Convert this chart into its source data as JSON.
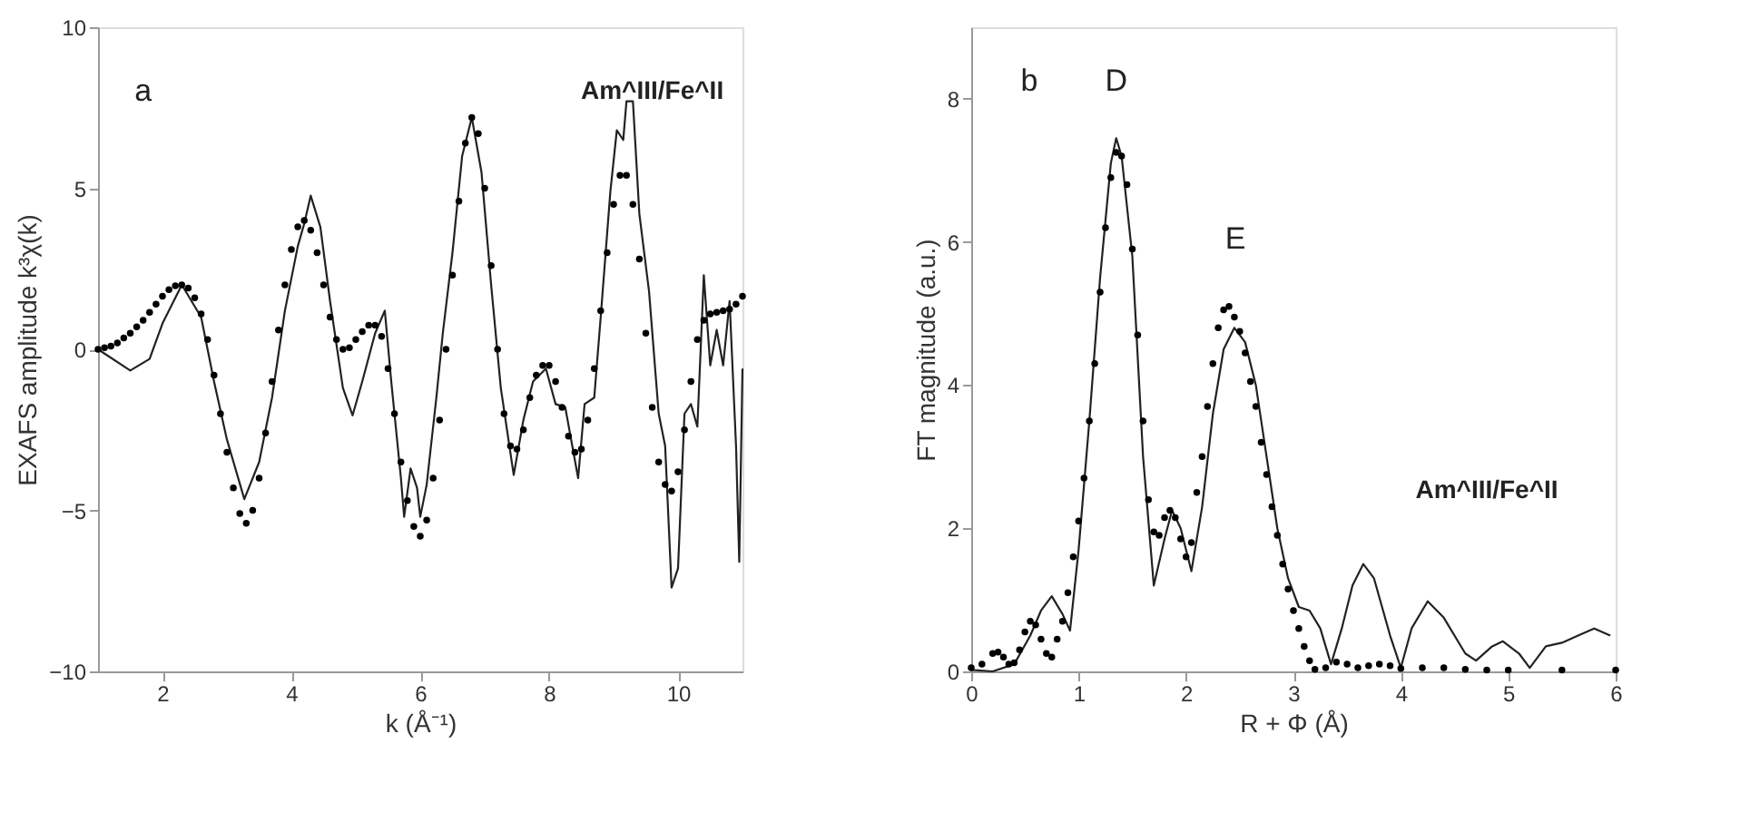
{
  "chart_data": [
    {
      "type": "line",
      "xlabel": "k (Å⁻¹)",
      "ylabel": "EXAFS amplitude k³χ(k)",
      "xlim": [
        1,
        11
      ],
      "ylim": [
        -10,
        10
      ],
      "xticks": [
        2,
        4,
        6,
        8,
        10
      ],
      "yticks": [
        -10,
        -5,
        0,
        5,
        10
      ],
      "grid": false,
      "annotations": [
        "a",
        "Am^III/Fe^II"
      ],
      "series": [
        {
          "type": "line",
          "color": "#222222",
          "line_style": "solid",
          "x": [
            1.0,
            1.5,
            1.8,
            2.0,
            2.3,
            2.6,
            2.8,
            3.0,
            3.27,
            3.5,
            3.7,
            3.9,
            4.1,
            4.2,
            4.3,
            4.45,
            4.6,
            4.8,
            4.95,
            5.1,
            5.3,
            5.45,
            5.55,
            5.7,
            5.75,
            5.85,
            5.95,
            6.0,
            6.1,
            6.25,
            6.35,
            6.5,
            6.65,
            6.8,
            6.95,
            7.1,
            7.25,
            7.45,
            7.6,
            7.75,
            7.95,
            8.1,
            8.25,
            8.45,
            8.55,
            8.7,
            8.8,
            8.95,
            9.05,
            9.15,
            9.2,
            9.3,
            9.4,
            9.55,
            9.7,
            9.8,
            9.9,
            10.0,
            10.1,
            10.2,
            10.3,
            10.4,
            10.5,
            10.6,
            10.7,
            10.8,
            10.9,
            10.95,
            11.0
          ],
          "values": [
            0,
            -0.66,
            -0.3,
            0.8,
            2.0,
            1.0,
            -1,
            -2.8,
            -4.65,
            -3.5,
            -1.5,
            1.2,
            3.2,
            3.9,
            4.77,
            3.8,
            1.5,
            -1.2,
            -2.05,
            -1.0,
            0.5,
            1.2,
            -1,
            -4,
            -5.2,
            -3.7,
            -4.3,
            -5.2,
            -4.2,
            -1.5,
            0.5,
            3.0,
            6.0,
            7.2,
            5.5,
            2.0,
            -1.2,
            -3.9,
            -2.2,
            -1.0,
            -0.6,
            -1.7,
            -1.8,
            -4.0,
            -1.7,
            -1.5,
            1.0,
            4.9,
            6.8,
            6.5,
            7.7,
            7.7,
            4.2,
            1.8,
            -2.0,
            -3.0,
            -7.4,
            -6.8,
            -2.0,
            -1.7,
            -2.4,
            2.3,
            -0.5,
            0.6,
            -0.5,
            1.5,
            -3,
            -6.6,
            -0.6
          ]
        },
        {
          "type": "scatter",
          "marker": "circle",
          "color": "#000000",
          "x": [
            1.0,
            1.1,
            1.2,
            1.3,
            1.4,
            1.5,
            1.6,
            1.7,
            1.8,
            1.9,
            2.0,
            2.1,
            2.2,
            2.3,
            2.4,
            2.5,
            2.6,
            2.7,
            2.8,
            2.9,
            3.0,
            3.1,
            3.2,
            3.3,
            3.4,
            3.5,
            3.6,
            3.7,
            3.8,
            3.9,
            4.0,
            4.1,
            4.2,
            4.3,
            4.4,
            4.5,
            4.6,
            4.7,
            4.8,
            4.9,
            5.0,
            5.1,
            5.2,
            5.3,
            5.4,
            5.5,
            5.6,
            5.7,
            5.8,
            5.9,
            6.0,
            6.1,
            6.2,
            6.3,
            6.4,
            6.5,
            6.6,
            6.7,
            6.8,
            6.9,
            7.0,
            7.1,
            7.2,
            7.3,
            7.4,
            7.5,
            7.6,
            7.7,
            7.8,
            7.9,
            8.0,
            8.1,
            8.2,
            8.3,
            8.4,
            8.5,
            8.6,
            8.7,
            8.8,
            8.9,
            9.0,
            9.1,
            9.2,
            9.3,
            9.4,
            9.5,
            9.6,
            9.7,
            9.8,
            9.9,
            10.0,
            10.1,
            10.2,
            10.3,
            10.4,
            10.5,
            10.6,
            10.7,
            10.8,
            10.9,
            11.0
          ],
          "values": [
            0,
            0.05,
            0.1,
            0.2,
            0.35,
            0.5,
            0.7,
            0.9,
            1.15,
            1.4,
            1.65,
            1.85,
            1.97,
            2.0,
            1.9,
            1.6,
            1.1,
            0.3,
            -0.8,
            -2.0,
            -3.2,
            -4.3,
            -5.1,
            -5.4,
            -5.0,
            -4.0,
            -2.6,
            -1.0,
            0.6,
            2.0,
            3.1,
            3.8,
            4.0,
            3.7,
            3.0,
            2.0,
            1.0,
            0.3,
            0.0,
            0.05,
            0.3,
            0.55,
            0.75,
            0.75,
            0.4,
            -0.6,
            -2.0,
            -3.5,
            -4.7,
            -5.5,
            -5.8,
            -5.3,
            -4.0,
            -2.2,
            0.0,
            2.3,
            4.6,
            6.4,
            7.2,
            6.7,
            5.0,
            2.6,
            0.0,
            -2.0,
            -3.0,
            -3.1,
            -2.5,
            -1.5,
            -0.8,
            -0.5,
            -0.5,
            -1.0,
            -1.8,
            -2.7,
            -3.2,
            -3.1,
            -2.2,
            -0.6,
            1.2,
            3.0,
            4.5,
            5.4,
            5.4,
            4.5,
            2.8,
            0.5,
            -1.8,
            -3.5,
            -4.2,
            -4.4,
            -3.8,
            -2.5,
            -1.0,
            0.3,
            0.9,
            1.1,
            1.15,
            1.2,
            1.25,
            1.4,
            1.65
          ]
        }
      ]
    },
    {
      "type": "line",
      "xlabel": "R + Φ (Å)",
      "ylabel": "FT magnitude (a.u.)",
      "xlim": [
        0,
        6
      ],
      "ylim": [
        0,
        9
      ],
      "xticks": [
        0,
        1,
        2,
        3,
        4,
        5,
        6
      ],
      "yticks": [
        0,
        2,
        4,
        6,
        8
      ],
      "grid": false,
      "annotations": [
        "b",
        "D",
        "E",
        "Am^III/Fe^II"
      ],
      "series": [
        {
          "type": "line",
          "color": "#222222",
          "line_style": "solid",
          "x": [
            0,
            0.2,
            0.4,
            0.55,
            0.65,
            0.75,
            0.85,
            0.92,
            1.0,
            1.1,
            1.2,
            1.3,
            1.35,
            1.4,
            1.5,
            1.6,
            1.7,
            1.8,
            1.87,
            1.95,
            2.05,
            2.15,
            2.25,
            2.35,
            2.45,
            2.55,
            2.65,
            2.75,
            2.85,
            2.95,
            3.05,
            3.15,
            3.25,
            3.35,
            3.45,
            3.55,
            3.65,
            3.75,
            3.9,
            4.0,
            4.1,
            4.25,
            4.4,
            4.6,
            4.7,
            4.85,
            4.95,
            5.1,
            5.2,
            5.35,
            5.5,
            5.65,
            5.8,
            5.95
          ],
          "values": [
            0.02,
            0.0,
            0.1,
            0.5,
            0.85,
            1.05,
            0.8,
            0.57,
            1.7,
            3.5,
            5.5,
            7.1,
            7.45,
            7.2,
            5.8,
            3.0,
            1.2,
            1.85,
            2.25,
            2.0,
            1.4,
            2.3,
            3.6,
            4.5,
            4.8,
            4.6,
            4.0,
            3.0,
            2.0,
            1.3,
            0.9,
            0.85,
            0.6,
            0.1,
            0.6,
            1.2,
            1.5,
            1.3,
            0.5,
            0.05,
            0.6,
            0.98,
            0.75,
            0.25,
            0.15,
            0.35,
            0.42,
            0.25,
            0.05,
            0.35,
            0.4,
            0.5,
            0.6,
            0.5
          ]
        },
        {
          "type": "scatter",
          "marker": "circle",
          "color": "#000000",
          "x": [
            0,
            0.1,
            0.2,
            0.25,
            0.3,
            0.35,
            0.4,
            0.45,
            0.5,
            0.55,
            0.6,
            0.65,
            0.7,
            0.75,
            0.8,
            0.85,
            0.9,
            0.95,
            1.0,
            1.05,
            1.1,
            1.15,
            1.2,
            1.25,
            1.3,
            1.35,
            1.4,
            1.45,
            1.5,
            1.55,
            1.6,
            1.65,
            1.7,
            1.75,
            1.8,
            1.85,
            1.9,
            1.95,
            2.0,
            2.05,
            2.1,
            2.15,
            2.2,
            2.25,
            2.3,
            2.35,
            2.4,
            2.45,
            2.5,
            2.55,
            2.6,
            2.65,
            2.7,
            2.75,
            2.8,
            2.85,
            2.9,
            2.95,
            3.0,
            3.05,
            3.1,
            3.15,
            3.2,
            3.3,
            3.4,
            3.5,
            3.6,
            3.7,
            3.8,
            3.9,
            4.0,
            4.2,
            4.4,
            4.6,
            4.8,
            5.0,
            5.5,
            6.0
          ],
          "values": [
            0.05,
            0.1,
            0.25,
            0.27,
            0.2,
            0.1,
            0.12,
            0.3,
            0.55,
            0.7,
            0.65,
            0.45,
            0.25,
            0.2,
            0.45,
            0.7,
            1.1,
            1.6,
            2.1,
            2.7,
            3.5,
            4.3,
            5.3,
            6.2,
            6.9,
            7.25,
            7.2,
            6.8,
            5.9,
            4.7,
            3.5,
            2.4,
            1.95,
            1.9,
            2.15,
            2.25,
            2.15,
            1.85,
            1.6,
            1.8,
            2.5,
            3.0,
            3.7,
            4.3,
            4.8,
            5.05,
            5.1,
            4.95,
            4.75,
            4.45,
            4.05,
            3.7,
            3.2,
            2.75,
            2.3,
            1.9,
            1.5,
            1.15,
            0.85,
            0.6,
            0.35,
            0.15,
            0.03,
            0.05,
            0.13,
            0.1,
            0.05,
            0.08,
            0.1,
            0.08,
            0.04,
            0.05,
            0.05,
            0.03,
            0.02,
            0.02,
            0.02,
            0.02
          ]
        }
      ]
    }
  ]
}
